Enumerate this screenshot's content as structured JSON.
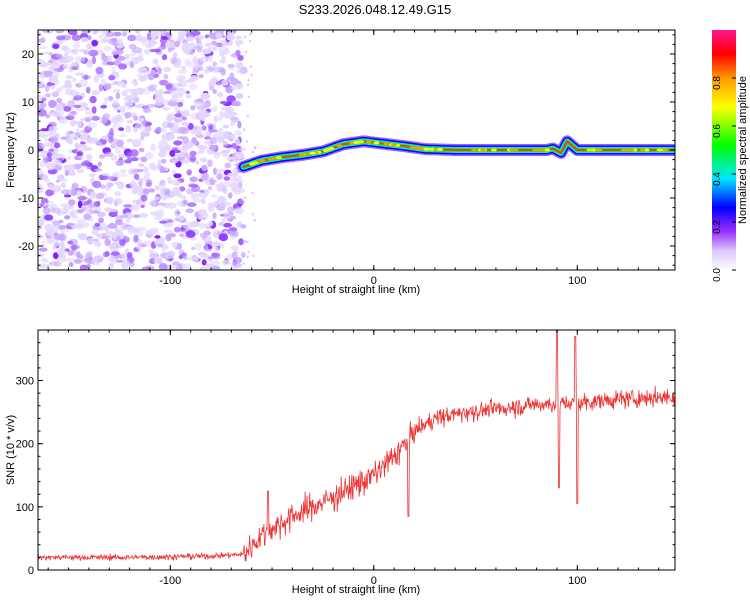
{
  "figure": {
    "title": "S233.2026.048.12.49.G15"
  },
  "chart_data": [
    {
      "type": "heatmap",
      "xlabel": "Height of straight line (km)",
      "ylabel": "Frequency (Hz)",
      "xlim": [
        -165,
        148
      ],
      "ylim": [
        -25,
        25
      ],
      "xticks": [
        -100,
        0,
        100
      ],
      "xtick_labels": [
        "-100",
        "0",
        "100"
      ],
      "yticks": [
        -20,
        -10,
        0,
        10,
        20
      ],
      "ytick_labels": [
        "-20",
        "-10",
        "0",
        "10",
        "20"
      ],
      "noise_region_x": [
        -165,
        -64
      ],
      "signal_track": {
        "x": [
          -64,
          -55,
          -45,
          -35,
          -25,
          -15,
          -5,
          5,
          15,
          25,
          40,
          60,
          80,
          85,
          88,
          92,
          95,
          100,
          120,
          148
        ],
        "frequency": [
          -3.5,
          -2.2,
          -1.5,
          -1.0,
          -0.3,
          1.2,
          1.8,
          1.3,
          0.8,
          0.2,
          0.0,
          0.0,
          0.0,
          0.0,
          0.3,
          -0.6,
          1.8,
          0.0,
          0.0,
          0.0
        ]
      },
      "colorbar": {
        "label": "Normalized spectral amplitude",
        "ticks": [
          0.0,
          0.2,
          0.4,
          0.6,
          0.8
        ],
        "tick_labels": [
          "0.0",
          "0.2",
          "0.4",
          "0.6",
          "0.8"
        ],
        "range": [
          0,
          1
        ],
        "colormap": [
          "#ffffff",
          "#dcc8ff",
          "#9b30ff",
          "#0000ff",
          "#00e5ff",
          "#00ff00",
          "#ffff00",
          "#ff9900",
          "#ff0000",
          "#ff1493"
        ]
      }
    },
    {
      "type": "line",
      "xlabel": "Height of straight line (km)",
      "ylabel": "SNR (10 * v/v)",
      "xlim": [
        -165,
        148
      ],
      "ylim": [
        0,
        380
      ],
      "xticks": [
        -100,
        0,
        100
      ],
      "xtick_labels": [
        "-100",
        "0",
        "100"
      ],
      "yticks": [
        0,
        100,
        200,
        300
      ],
      "ytick_labels": [
        "0",
        "100",
        "200",
        "300"
      ],
      "color": "#ee3333",
      "trend": {
        "x": [
          -165,
          -120,
          -80,
          -64,
          -55,
          -40,
          -20,
          0,
          10,
          17,
          20,
          30,
          45,
          60,
          80,
          100,
          120,
          148
        ],
        "y": [
          20,
          20,
          22,
          25,
          55,
          85,
          115,
          150,
          180,
          205,
          220,
          240,
          250,
          255,
          262,
          265,
          270,
          275
        ]
      },
      "spikes": [
        {
          "x": -52,
          "y": 125
        },
        {
          "x": 17,
          "y": 85
        },
        {
          "x": 90,
          "y": 380
        },
        {
          "x": 91,
          "y": 130
        },
        {
          "x": 99,
          "y": 370
        },
        {
          "x": 100,
          "y": 105
        }
      ]
    }
  ]
}
